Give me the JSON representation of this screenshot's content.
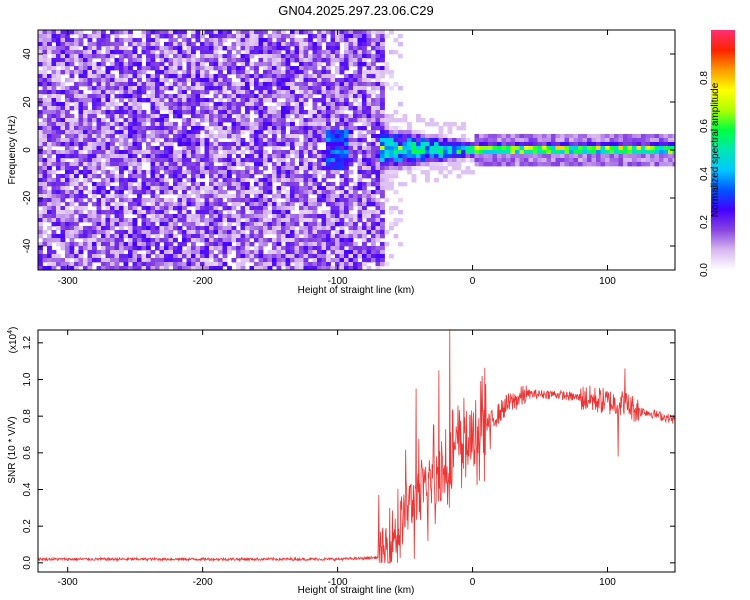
{
  "title": "GN04.2025.297.23.06.C29",
  "chart_data": [
    {
      "type": "heatmap",
      "name": "spectrogram",
      "title": "GN04.2025.297.23.06.C29",
      "xlabel": "Height of straight line (km)",
      "ylabel": "Frequency (Hz)",
      "xlim": [
        -322,
        150
      ],
      "ylim": [
        -50,
        50
      ],
      "x_ticks": [
        -300,
        -200,
        -100,
        0,
        100
      ],
      "y_ticks": [
        -40,
        -20,
        0,
        20,
        40
      ],
      "colorbar": {
        "label": "Normalized spectral amplitude",
        "range": [
          0.0,
          1.0
        ],
        "ticks": [
          0.0,
          0.2,
          0.4,
          0.6,
          0.8
        ],
        "tick_labels": [
          "0.0",
          "0.2",
          "0.4",
          "0.6",
          "0.8"
        ],
        "colors": [
          "#ffffff",
          "#d8b8f0",
          "#8844e0",
          "#4400ff",
          "#0055ff",
          "#00c8ff",
          "#00e6b4",
          "#00ff40",
          "#b0ff00",
          "#ffff00",
          "#ff9900",
          "#ff2200",
          "#ff3070"
        ]
      },
      "regions": [
        {
          "x_range": [
            -322,
            -67
          ],
          "freq_range": [
            -50,
            50
          ],
          "description_level": 0.15
        },
        {
          "x_range": [
            -67,
            -55
          ],
          "freq_range": [
            -50,
            50
          ],
          "description_level": 0.05
        },
        {
          "x_range": [
            -65,
            0
          ],
          "freq_range": [
            -10,
            10
          ],
          "description_level": 0.45
        },
        {
          "x_range": [
            0,
            150
          ],
          "freq_range": [
            -2,
            4
          ],
          "description_level": 0.65
        }
      ]
    },
    {
      "type": "line",
      "name": "snr",
      "xlabel": "Height of straight line (km)",
      "ylabel": "SNR (10 * V/V)",
      "y_multiplier": "(x10",
      "y_multiplier_exp": "4",
      "y_multiplier_close": ")",
      "xlim": [
        -322,
        150
      ],
      "ylim": [
        -0.05,
        1.27
      ],
      "x_ticks": [
        -300,
        -200,
        -100,
        0,
        100
      ],
      "y_ticks": [
        0.0,
        0.2,
        0.4,
        0.6,
        0.8,
        1.0,
        1.2
      ],
      "y_tick_labels": [
        "0.0",
        "0.2",
        "0.4",
        "0.6",
        "0.8",
        "1.0",
        "1.2"
      ],
      "color": "#ee3333",
      "envelope": {
        "x": [
          -322,
          -250,
          -150,
          -100,
          -80,
          -70,
          -65,
          -60,
          -55,
          -50,
          -45,
          -40,
          -35,
          -30,
          -25,
          -20,
          -18,
          -15,
          -12,
          -10,
          -5,
          0,
          5,
          10,
          15,
          20,
          25,
          30,
          35,
          40,
          50,
          60,
          70,
          80,
          90,
          100,
          105,
          110,
          115,
          120,
          130,
          140,
          150
        ],
        "y": [
          0.02,
          0.02,
          0.02,
          0.02,
          0.025,
          0.03,
          0.05,
          0.15,
          0.18,
          0.28,
          0.32,
          0.35,
          0.4,
          0.45,
          0.48,
          0.5,
          0.55,
          0.6,
          0.62,
          0.64,
          0.66,
          0.67,
          0.7,
          0.74,
          0.78,
          0.82,
          0.86,
          0.88,
          0.9,
          0.92,
          0.92,
          0.92,
          0.91,
          0.9,
          0.89,
          0.88,
          0.87,
          0.87,
          0.86,
          0.84,
          0.82,
          0.8,
          0.78
        ]
      },
      "spikes": [
        {
          "x": -17,
          "y": 1.27
        },
        {
          "x": -42,
          "y": 0.95
        },
        {
          "x": -25,
          "y": 1.05
        },
        {
          "x": 113,
          "y": 1.06
        },
        {
          "x": 108,
          "y": 0.58
        },
        {
          "x": 13,
          "y": 0.62
        }
      ]
    }
  ]
}
